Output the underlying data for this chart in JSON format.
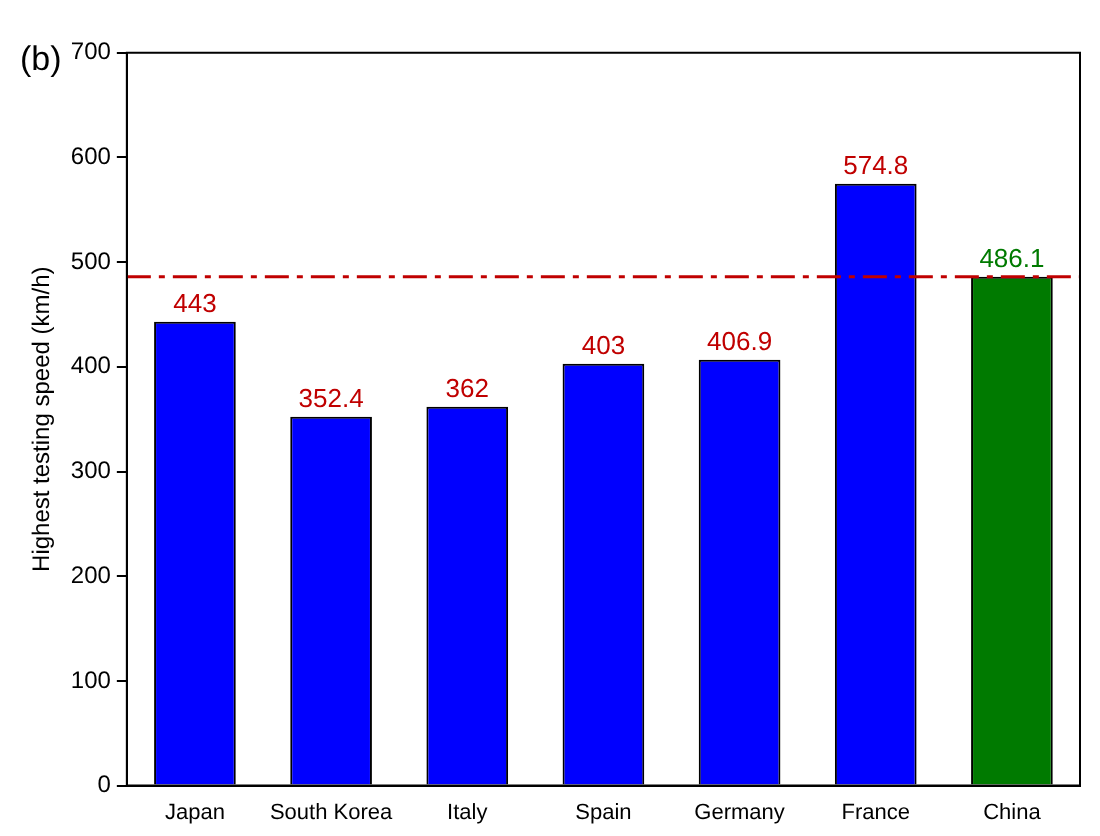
{
  "chart_data": {
    "type": "bar",
    "title": "(b)",
    "ylabel": "Highest testing speed (km/h)",
    "categories": [
      "Japan",
      "South Korea",
      "Italy",
      "Spain",
      "Germany",
      "France",
      "China"
    ],
    "values": [
      443,
      352.4,
      362,
      403,
      406.9,
      574.8,
      486.1
    ],
    "colors": [
      "#0000ff",
      "#0000ff",
      "#0000ff",
      "#0000ff",
      "#0000ff",
      "#0000ff",
      "#007a00"
    ],
    "ylim": [
      0,
      700
    ],
    "yticks": [
      0,
      100,
      200,
      300,
      400,
      500,
      600,
      700
    ],
    "grid": false,
    "legend": false,
    "data_labels": true,
    "ref_lines": [
      {
        "axis": "y",
        "value": 486.1,
        "color": "#c00000",
        "line_style": "dashed"
      }
    ]
  }
}
